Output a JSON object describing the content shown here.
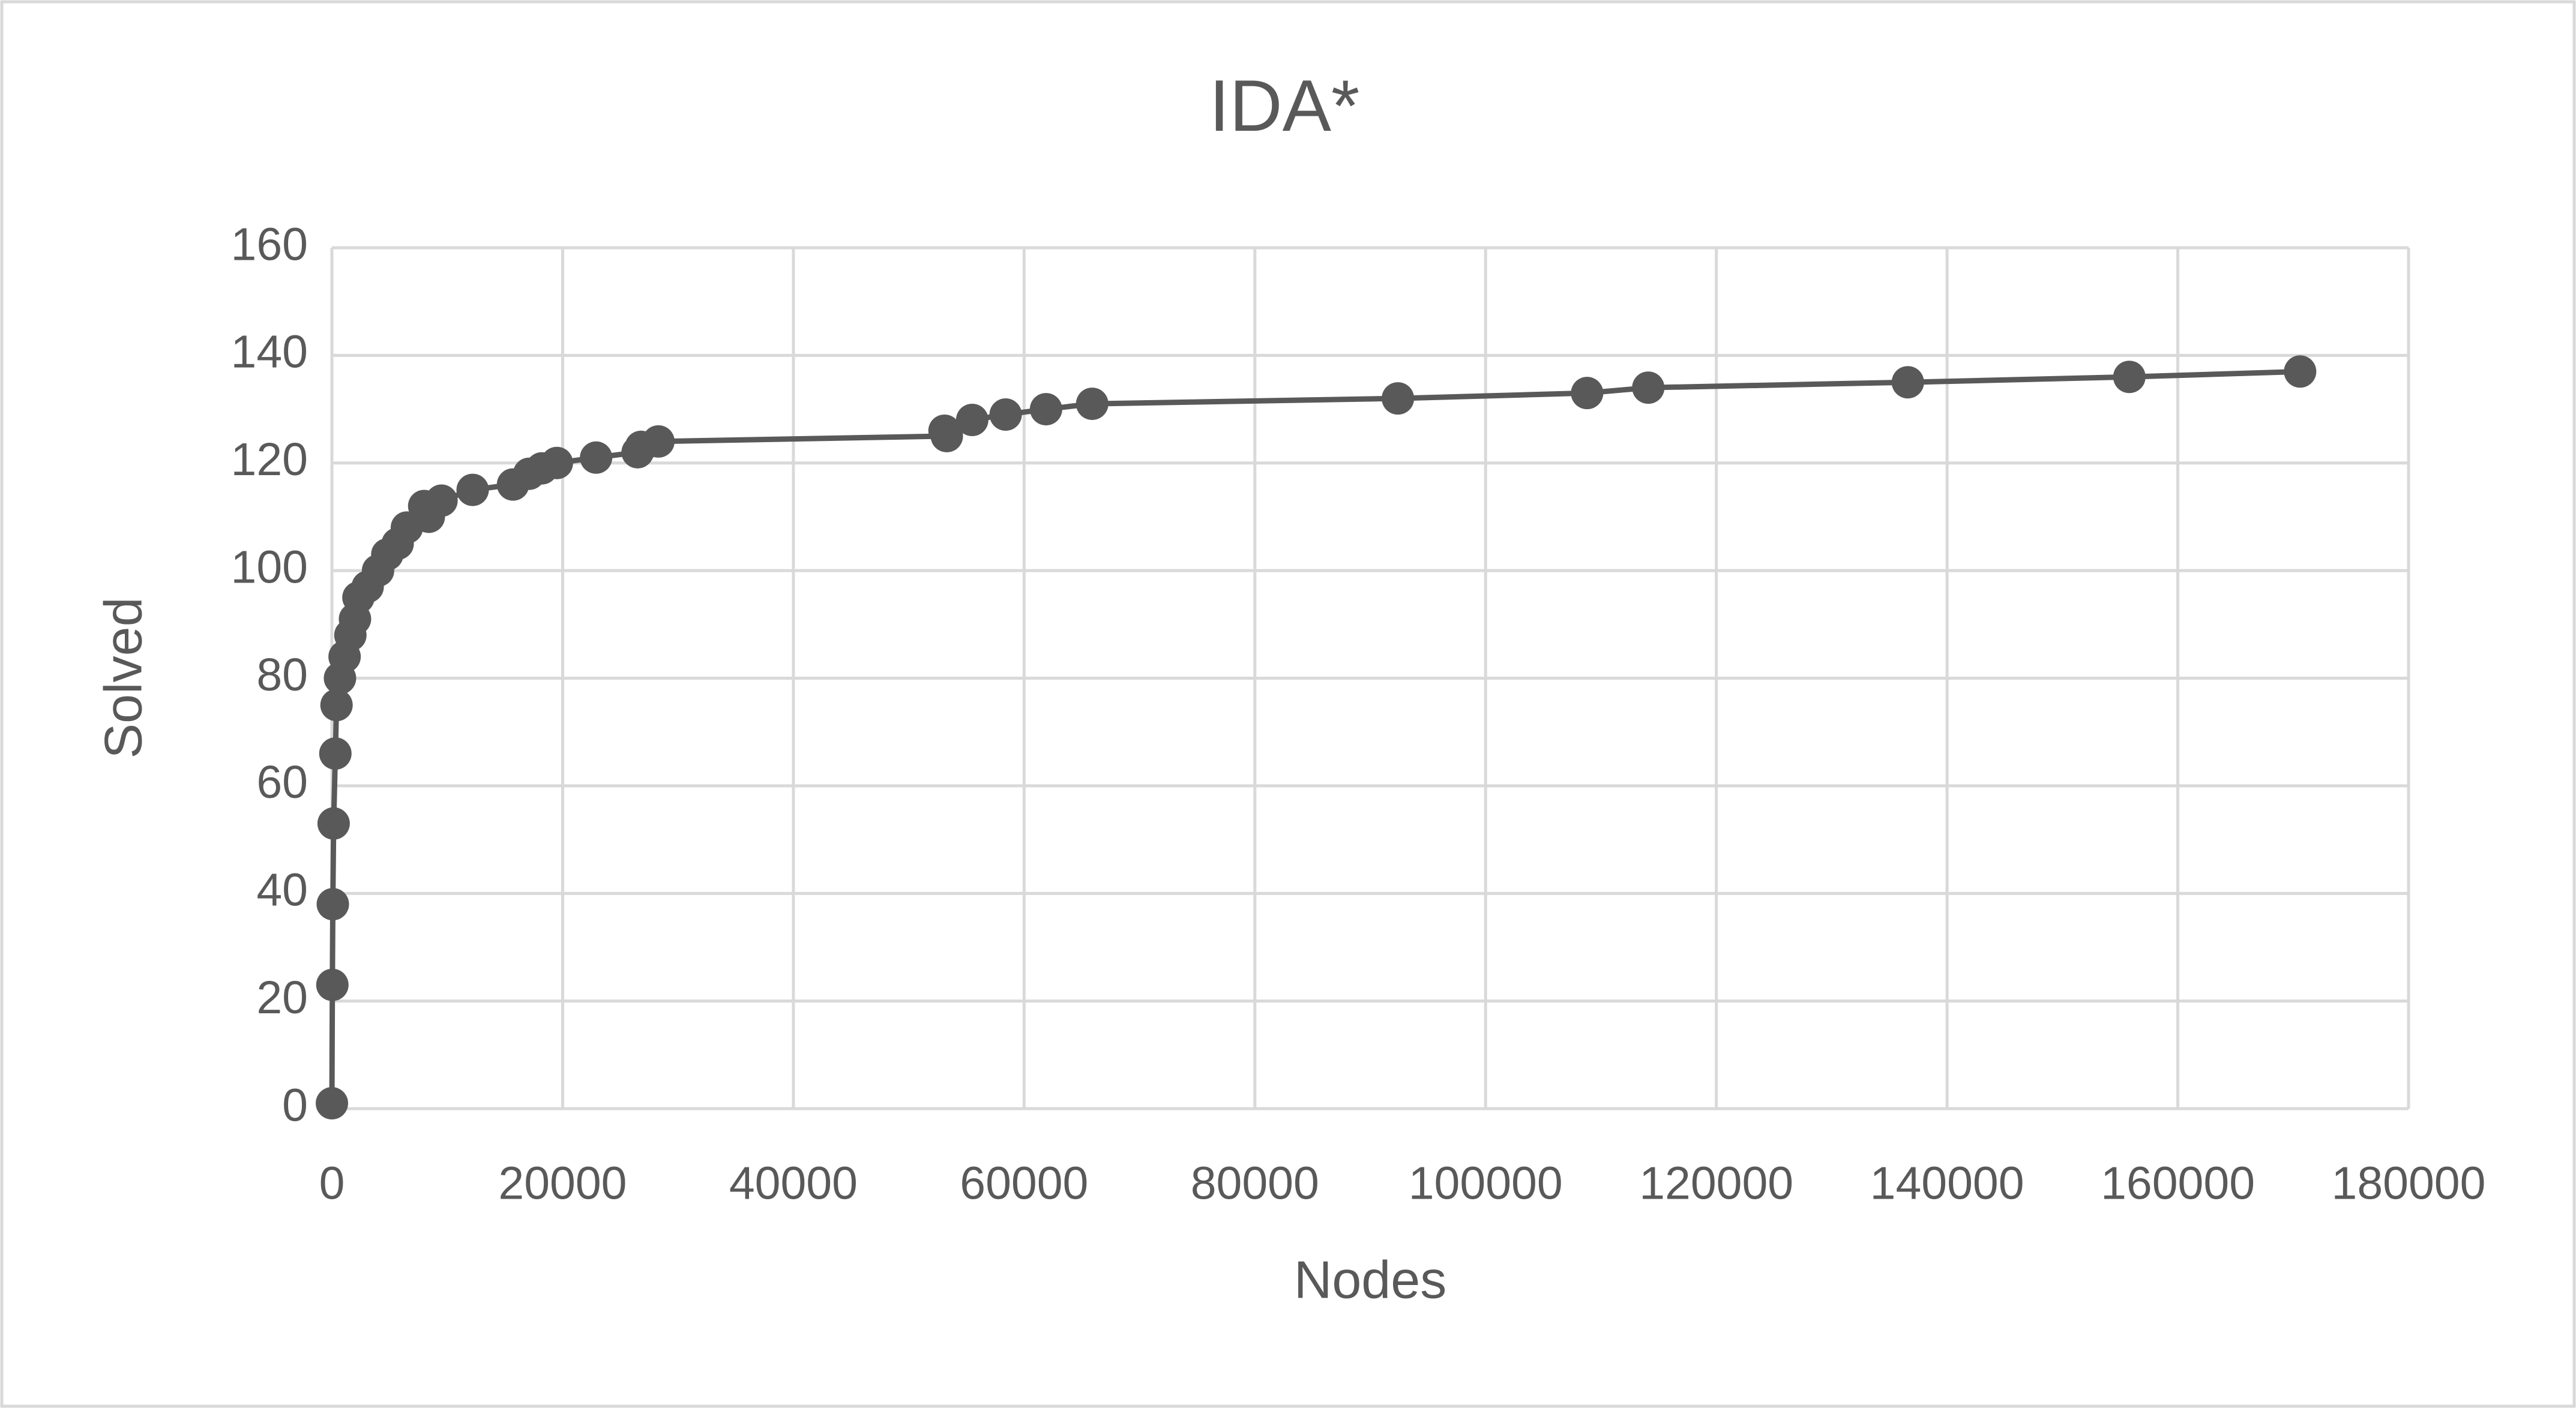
{
  "chart_data": {
    "type": "line",
    "title": "IDA*",
    "x_label": "Nodes",
    "y_label": "Solved",
    "x": [
      1,
      40,
      80,
      150,
      300,
      400,
      700,
      1100,
      1600,
      2000,
      2300,
      3100,
      4000,
      4800,
      5700,
      6500,
      8400,
      8000,
      9500,
      12200,
      15700,
      17100,
      18200,
      19500,
      22900,
      26500,
      26800,
      28300,
      53300,
      53100,
      55500,
      58400,
      61900,
      65900,
      92400,
      108800,
      114100,
      136600,
      155800,
      170600
    ],
    "series": [
      {
        "name": "Solved",
        "color": "#595959",
        "values": [
          1,
          23,
          38,
          53,
          66,
          75,
          80,
          84,
          88,
          91,
          95,
          97,
          100,
          103,
          105,
          108,
          110,
          112,
          113,
          115,
          116,
          118,
          119,
          120,
          121,
          122,
          123,
          124,
          125,
          126,
          128,
          129,
          130,
          131,
          132,
          133,
          134,
          135,
          136,
          137
        ]
      }
    ],
    "xlim": [
      0,
      180000
    ],
    "xticks": [
      0,
      20000,
      40000,
      60000,
      80000,
      100000,
      120000,
      140000,
      160000,
      180000
    ],
    "ylim": [
      0,
      160
    ],
    "yticks": [
      0,
      20,
      40,
      60,
      80,
      100,
      120,
      140,
      160
    ],
    "grid": true
  }
}
